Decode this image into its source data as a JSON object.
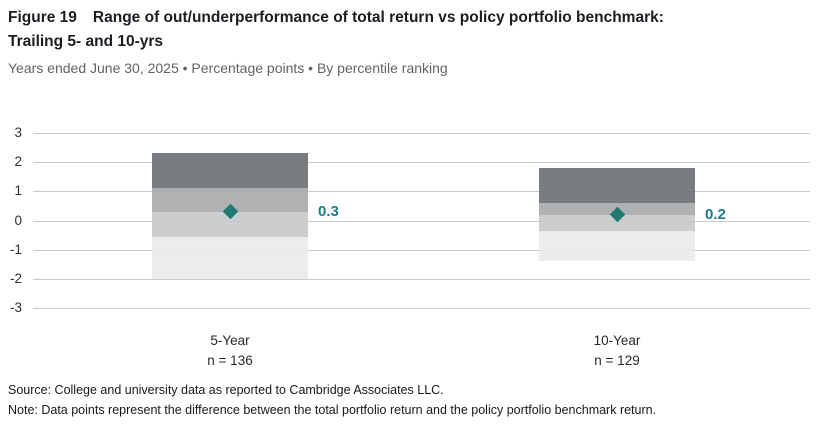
{
  "header": {
    "figure_label": "Figure 19",
    "title_line1": "Range of out/underperformance of total return vs policy portfolio benchmark:",
    "title_line2": "Trailing 5- and 10-yrs",
    "subtitle": "Years ended June 30, 2025 • Percentage points • By percentile ranking"
  },
  "chart_data": {
    "type": "bar",
    "subtype": "floating-stacked-percentile-range",
    "title": "Range of out/underperformance of total return vs policy portfolio benchmark: Trailing 5- and 10-yrs",
    "categories": [
      "5-Year",
      "10-Year"
    ],
    "sample_size_labels": [
      "n = 136",
      "n = 129"
    ],
    "series": [
      {
        "category": "5-Year",
        "n": 136,
        "band_boundaries": [
          2.3,
          1.1,
          0.3,
          -0.55,
          -2.0
        ],
        "median": 0.3,
        "median_label": "0.3"
      },
      {
        "category": "10-Year",
        "n": 129,
        "band_boundaries": [
          1.8,
          0.6,
          0.2,
          -0.35,
          -1.4
        ],
        "median": 0.2,
        "median_label": "0.2"
      }
    ],
    "y_ticks": [
      3,
      2,
      1,
      0,
      -1,
      -2,
      -3
    ],
    "ylim": [
      -3,
      3
    ],
    "grid": true,
    "legend": false,
    "colors": {
      "bands": [
        "#6C6F71",
        "#A6A8AA",
        "#C6C8C9",
        "#EAEAEA"
      ],
      "band_opacity": 0.9,
      "marker": "#1F7A73",
      "value_label": "#1E7B87",
      "gridline": "#C9CACB",
      "axis_text": "#2C2F33"
    }
  },
  "footer": {
    "source": "Source: College and university data as reported to Cambridge Associates LLC.",
    "note": "Note: Data points represent the difference between the total portfolio return and the policy portfolio benchmark return."
  }
}
